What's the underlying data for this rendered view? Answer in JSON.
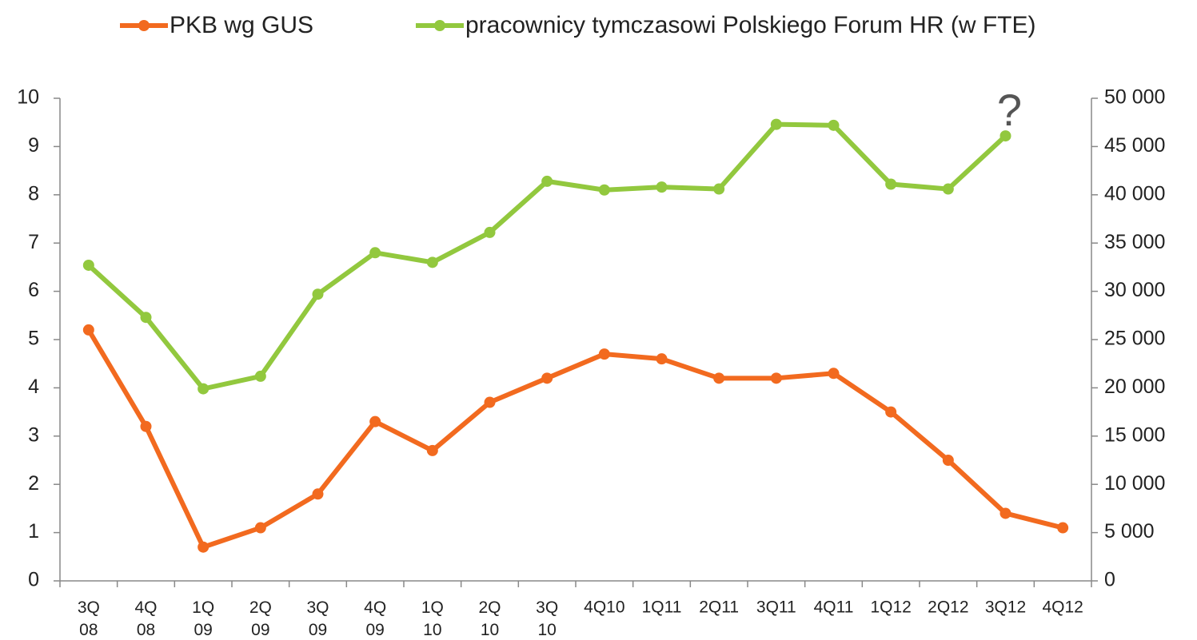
{
  "chart_data": {
    "type": "line",
    "categories": [
      "3Q 08",
      "4Q 08",
      "1Q 09",
      "2Q 09",
      "3Q 09",
      "4Q 09",
      "1Q 10",
      "2Q 10",
      "3Q 10",
      "4Q10",
      "1Q11",
      "2Q11",
      "3Q11",
      "4Q11",
      "1Q12",
      "2Q12",
      "3Q12",
      "4Q12"
    ],
    "series": [
      {
        "name": "PKB wg GUS",
        "color": "#f26a1f",
        "values": [
          5.2,
          3.2,
          0.7,
          1.1,
          1.8,
          3.3,
          2.7,
          3.7,
          4.2,
          4.7,
          4.6,
          4.2,
          4.2,
          4.3,
          3.5,
          2.5,
          1.4,
          1.1
        ]
      },
      {
        "name": "pracownicy tymczasowi Polskiego Forum HR (w FTE)",
        "color": "#92c83e",
        "axis": "y2",
        "values": [
          32700,
          27300,
          19900,
          21200,
          29700,
          34000,
          33000,
          36100,
          41400,
          40500,
          40800,
          40600,
          47300,
          47200,
          41100,
          40600,
          46100,
          null
        ]
      }
    ],
    "annotation": "?",
    "ylim": [
      0,
      10
    ],
    "yticks": [
      0,
      1,
      2,
      3,
      4,
      5,
      6,
      7,
      8,
      9,
      10
    ],
    "y2lim": [
      0,
      50000
    ],
    "y2ticks": [
      0,
      {
        "value": 5000,
        "label": "5 000"
      },
      {
        "value": 10000,
        "label": "10 000"
      },
      {
        "value": 15000,
        "label": "15 000"
      },
      {
        "value": 20000,
        "label": "20 000"
      },
      {
        "value": 25000,
        "label": "25 000"
      },
      {
        "value": 30000,
        "label": "30 000"
      },
      {
        "value": 35000,
        "label": "35 000"
      },
      {
        "value": 40000,
        "label": "40 000"
      },
      {
        "value": 45000,
        "label": "45 000"
      },
      {
        "value": 50000,
        "label": "50 000"
      }
    ],
    "legend": "top"
  }
}
